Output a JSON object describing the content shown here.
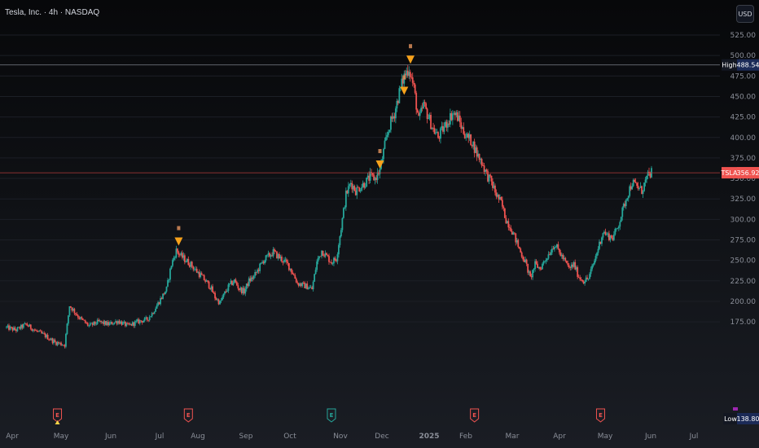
{
  "symbol_title": "Tesla, Inc. · 4h · NASDAQ",
  "currency_label": "USD",
  "colors": {
    "up": "#26a69a",
    "down": "#ef5350",
    "signal": "#f7a21b",
    "high_line": "#6b6f78",
    "current_line": "#b23a3a",
    "high_tag_bg": "#1b2a57",
    "current_tag_bg": "#ef5350",
    "low_tag_bg": "#1b2a57"
  },
  "chart_data": {
    "type": "candlestick",
    "title": "Tesla, Inc. · 4h · NASDAQ",
    "x_ticks": [
      "Apr",
      "May",
      "Jun",
      "Jul",
      "Aug",
      "Sep",
      "Oct",
      "Nov",
      "Dec",
      "2025",
      "Feb",
      "Mar",
      "Apr",
      "May",
      "Jun",
      "Jul"
    ],
    "y_ticks": [
      "525.00",
      "500.00",
      "475.00",
      "450.00",
      "425.00",
      "400.00",
      "375.00",
      "350.00",
      "325.00",
      "300.00",
      "275.00",
      "250.00",
      "225.00",
      "200.00",
      "175.00"
    ],
    "ylim": [
      135,
      535
    ],
    "price_path": [
      [
        0,
        168
      ],
      [
        2,
        165
      ],
      [
        4,
        172
      ],
      [
        6,
        164
      ],
      [
        8,
        158
      ],
      [
        10,
        150
      ],
      [
        12,
        147
      ],
      [
        13,
        195
      ],
      [
        15,
        180
      ],
      [
        17,
        170
      ],
      [
        19,
        175
      ],
      [
        21,
        172
      ],
      [
        23,
        176
      ],
      [
        25,
        170
      ],
      [
        27,
        175
      ],
      [
        29,
        178
      ],
      [
        30,
        185
      ],
      [
        31,
        195
      ],
      [
        33,
        215
      ],
      [
        34,
        245
      ],
      [
        35,
        262
      ],
      [
        36,
        255
      ],
      [
        37,
        250
      ],
      [
        38,
        245
      ],
      [
        39,
        238
      ],
      [
        40,
        232
      ],
      [
        41,
        225
      ],
      [
        42,
        218
      ],
      [
        43,
        205
      ],
      [
        44,
        198
      ],
      [
        45,
        210
      ],
      [
        46,
        220
      ],
      [
        47,
        225
      ],
      [
        48,
        215
      ],
      [
        49,
        212
      ],
      [
        50,
        225
      ],
      [
        51,
        230
      ],
      [
        52,
        240
      ],
      [
        53,
        250
      ],
      [
        54,
        255
      ],
      [
        55,
        260
      ],
      [
        56,
        255
      ],
      [
        57,
        250
      ],
      [
        58,
        245
      ],
      [
        59,
        235
      ],
      [
        60,
        222
      ],
      [
        61,
        220
      ],
      [
        62,
        218
      ],
      [
        63,
        215
      ],
      [
        64,
        248
      ],
      [
        65,
        262
      ],
      [
        66,
        255
      ],
      [
        67,
        248
      ],
      [
        68,
        252
      ],
      [
        69,
        290
      ],
      [
        70,
        330
      ],
      [
        71,
        345
      ],
      [
        72,
        335
      ],
      [
        73,
        340
      ],
      [
        74,
        345
      ],
      [
        75,
        352
      ],
      [
        76,
        350
      ],
      [
        77,
        360
      ],
      [
        78,
        390
      ],
      [
        79,
        415
      ],
      [
        80,
        430
      ],
      [
        81,
        455
      ],
      [
        82,
        475
      ],
      [
        83,
        485
      ],
      [
        84,
        460
      ],
      [
        85,
        420
      ],
      [
        86,
        440
      ],
      [
        87,
        425
      ],
      [
        88,
        410
      ],
      [
        89,
        400
      ],
      [
        90,
        410
      ],
      [
        91,
        420
      ],
      [
        92,
        430
      ],
      [
        93,
        425
      ],
      [
        94,
        410
      ],
      [
        95,
        400
      ],
      [
        96,
        395
      ],
      [
        97,
        380
      ],
      [
        98,
        370
      ],
      [
        99,
        355
      ],
      [
        100,
        345
      ],
      [
        101,
        330
      ],
      [
        102,
        320
      ],
      [
        103,
        300
      ],
      [
        104,
        290
      ],
      [
        105,
        275
      ],
      [
        106,
        260
      ],
      [
        107,
        248
      ],
      [
        108,
        228
      ],
      [
        109,
        245
      ],
      [
        110,
        240
      ],
      [
        111,
        250
      ],
      [
        112,
        260
      ],
      [
        113,
        270
      ],
      [
        114,
        260
      ],
      [
        115,
        250
      ],
      [
        116,
        240
      ],
      [
        117,
        245
      ],
      [
        118,
        230
      ],
      [
        119,
        225
      ],
      [
        120,
        228
      ],
      [
        121,
        245
      ],
      [
        122,
        265
      ],
      [
        123,
        285
      ],
      [
        124,
        280
      ],
      [
        125,
        278
      ],
      [
        126,
        290
      ],
      [
        127,
        310
      ],
      [
        128,
        330
      ],
      [
        129,
        345
      ],
      [
        130,
        340
      ],
      [
        131,
        335
      ],
      [
        132,
        350
      ],
      [
        133,
        358
      ]
    ],
    "gap_ranges": [
      [
        59,
        63
      ]
    ],
    "reference_lines": [
      {
        "label": "High",
        "value": "488.54",
        "level": 488.54
      },
      {
        "label": "TSLA",
        "value": "356.92",
        "level": 356.92
      }
    ],
    "low_marker": {
      "label": "Low",
      "value": "138.80",
      "level": 138.8
    },
    "signals": [
      {
        "x": 35.5,
        "level": 268
      },
      {
        "x": 77,
        "level": 362
      },
      {
        "x": 82,
        "level": 452
      },
      {
        "x": 83.3,
        "level": 490
      }
    ],
    "earnings_markers": [
      {
        "x": 10.5,
        "kind": "down"
      },
      {
        "x": 37.5,
        "kind": "down"
      },
      {
        "x": 67,
        "kind": "up"
      },
      {
        "x": 96.5,
        "kind": "down"
      },
      {
        "x": 122.5,
        "kind": "down"
      }
    ]
  }
}
